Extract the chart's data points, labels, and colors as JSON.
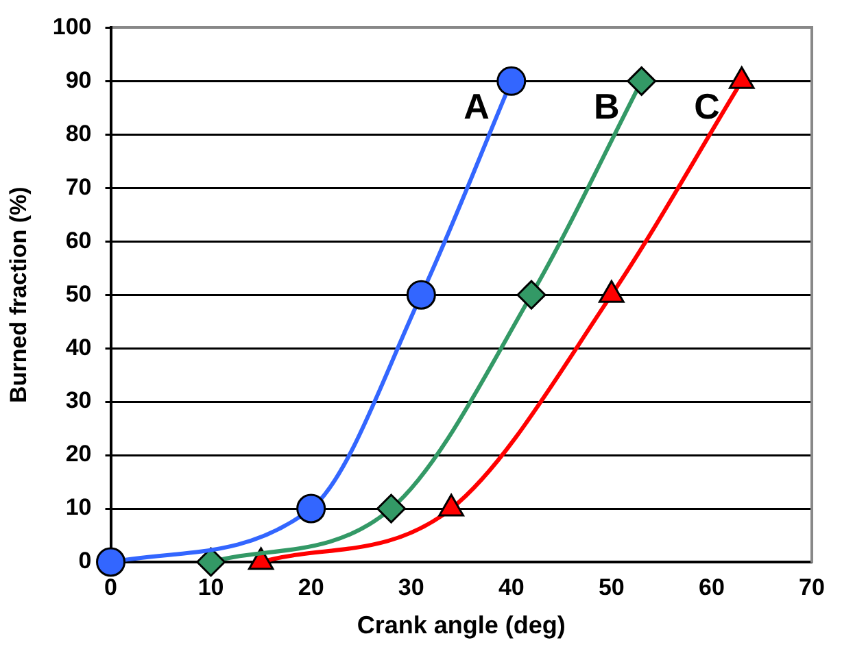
{
  "chart_data": {
    "type": "line",
    "xlabel": "Crank angle (deg)",
    "ylabel": "Burned fraction (%)",
    "xlim": [
      0,
      70
    ],
    "xticks": [
      0,
      10,
      20,
      30,
      40,
      50,
      60,
      70
    ],
    "ylim": [
      0,
      100
    ],
    "yticks": [
      0,
      10,
      20,
      30,
      40,
      50,
      60,
      70,
      80,
      90,
      100
    ],
    "grid": "y",
    "legend": false,
    "series": [
      {
        "name": "A",
        "color": "#3366ff",
        "marker": "circle",
        "x": [
          0,
          20,
          31,
          40
        ],
        "values": [
          0,
          10,
          50,
          90
        ]
      },
      {
        "name": "B",
        "color": "#339966",
        "marker": "diamond",
        "x": [
          10,
          28,
          42,
          53
        ],
        "values": [
          0,
          10,
          50,
          90
        ]
      },
      {
        "name": "C",
        "color": "#ff0000",
        "marker": "triangle",
        "x": [
          15,
          34,
          50,
          63
        ],
        "values": [
          0,
          10,
          50,
          90
        ]
      }
    ]
  }
}
